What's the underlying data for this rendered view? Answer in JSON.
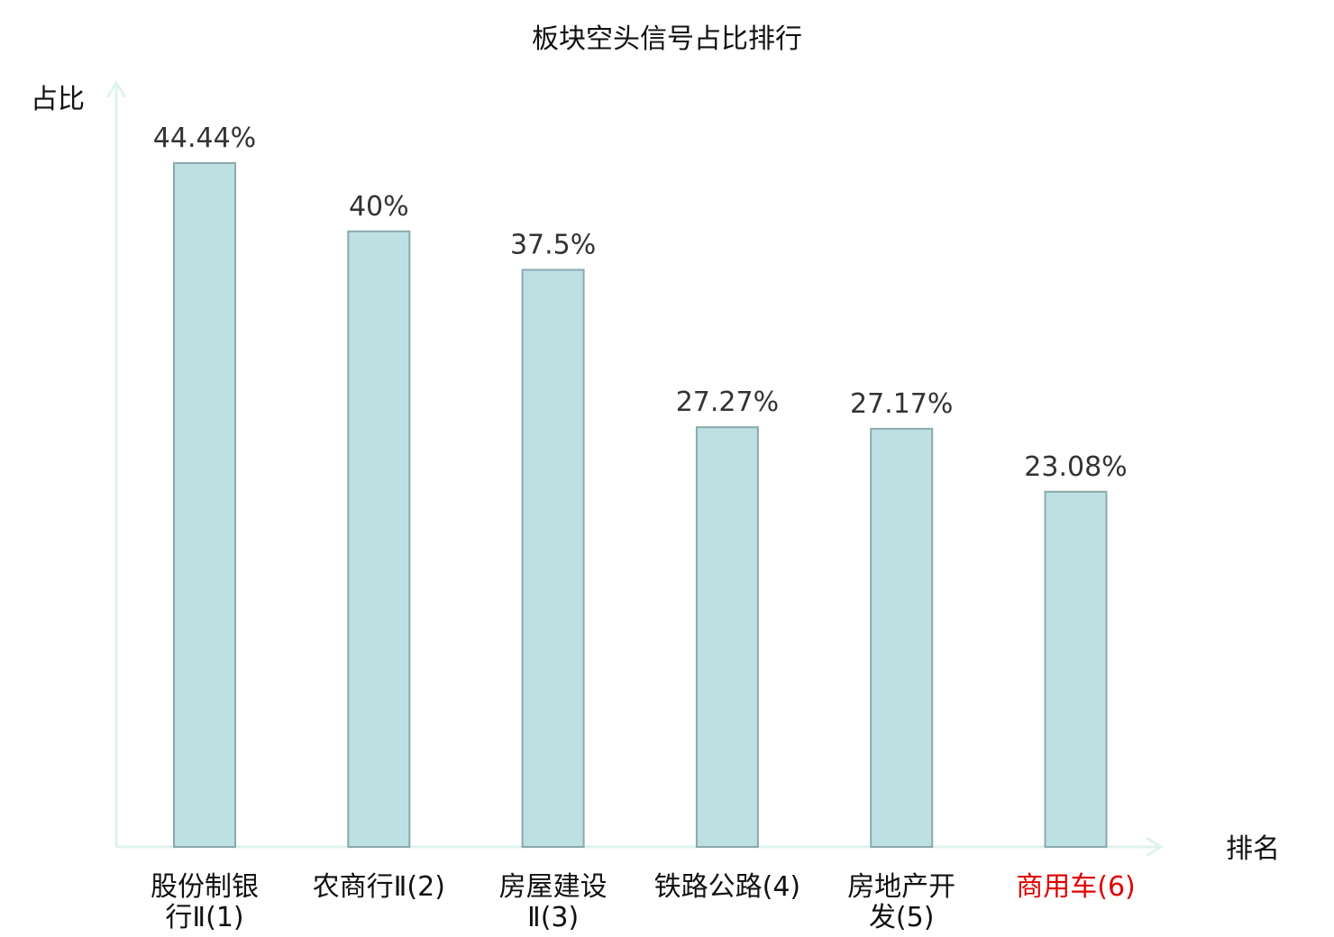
{
  "chart_data": {
    "type": "bar",
    "title": "板块空头信号占比排行",
    "ylabel": "占比",
    "xlabel": "排名",
    "ylim": [
      0,
      50
    ],
    "grid": false,
    "categories": [
      [
        "股份制银",
        "行Ⅱ(1)"
      ],
      [
        "农商行Ⅱ(2)"
      ],
      [
        "房屋建设",
        "Ⅱ(3)"
      ],
      [
        "铁路公路(4)"
      ],
      [
        "房地产开",
        "发(5)"
      ],
      [
        "商用车(6)"
      ]
    ],
    "values": [
      44.44,
      40,
      37.5,
      27.27,
      27.17,
      23.08
    ],
    "value_labels": [
      "44.44%",
      "40%",
      "37.5%",
      "27.27%",
      "27.17%",
      "23.08%"
    ],
    "highlight_index": 5,
    "colors": {
      "bar_fill": "#bde0e3",
      "bar_stroke": "#8aa9ab",
      "axis": "#dff2ef",
      "highlight": "#e00000",
      "category_text": "#111111"
    }
  }
}
